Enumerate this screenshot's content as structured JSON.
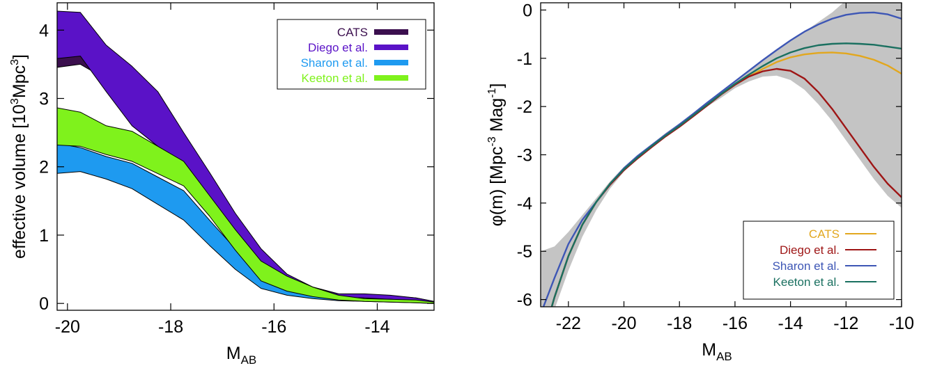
{
  "chart_data": [
    {
      "type": "area",
      "xlabel": "M",
      "xlabel_sub": "AB",
      "ylabel_pre": "effective volume [10",
      "ylabel_sup": "3",
      "ylabel_mid": "Mpc",
      "ylabel_sup2": "3",
      "ylabel_post": "]",
      "xlim": [
        -20.2,
        -12.9
      ],
      "ylim": [
        -0.1,
        4.4
      ],
      "xticks": [
        -20,
        -18,
        -16,
        -14
      ],
      "yticks": [
        0,
        1,
        2,
        3,
        4
      ],
      "legend_position": "top-right",
      "series": [
        {
          "name": "CATS",
          "color": "#3b0f4e",
          "x": [
            -20.25,
            -19.75,
            -19.25,
            -18.75,
            -18.25,
            -17.75,
            -17.25,
            -16.75,
            -16.25,
            -15.75,
            -15.25,
            -14.75,
            -14.25,
            -13.75,
            -13.25,
            -12.9
          ],
          "upper": [
            3.72,
            3.72,
            3.58,
            3.42,
            3.06,
            2.48,
            1.9,
            1.3,
            0.78,
            0.42,
            0.24,
            0.14,
            0.13,
            0.11,
            0.08,
            0.03
          ],
          "lower": [
            3.45,
            3.5,
            3.28,
            3.1,
            2.7,
            2.2,
            1.6,
            1.05,
            0.6,
            0.32,
            0.17,
            0.1,
            0.09,
            0.07,
            0.05,
            0.01
          ]
        },
        {
          "name": "Diego et al.",
          "color": "#5a12c7",
          "x": [
            -20.25,
            -19.75,
            -19.25,
            -18.75,
            -18.25,
            -17.75,
            -17.25,
            -16.75,
            -16.25,
            -15.75,
            -15.25,
            -14.75,
            -14.25,
            -13.75,
            -13.25,
            -12.9
          ],
          "upper": [
            4.28,
            4.26,
            3.78,
            3.47,
            3.1,
            2.5,
            1.92,
            1.32,
            0.8,
            0.43,
            0.24,
            0.14,
            0.14,
            0.12,
            0.08,
            0.03
          ],
          "lower": [
            3.58,
            3.62,
            3.1,
            2.6,
            2.3,
            2.0,
            1.5,
            1.0,
            0.58,
            0.3,
            0.16,
            0.09,
            0.08,
            0.06,
            0.04,
            0.01
          ]
        },
        {
          "name": "Sharon et al.",
          "color": "#1e9af0",
          "x": [
            -20.25,
            -19.75,
            -19.25,
            -18.75,
            -18.25,
            -17.75,
            -17.25,
            -16.75,
            -16.25,
            -15.75,
            -15.25,
            -14.75,
            -14.25,
            -13.75,
            -13.25,
            -12.9
          ],
          "upper": [
            2.35,
            2.28,
            2.15,
            2.05,
            1.85,
            1.65,
            1.22,
            0.8,
            0.4,
            0.24,
            0.15,
            0.09,
            0.07,
            0.06,
            0.04,
            0.01
          ],
          "lower": [
            1.9,
            1.93,
            1.82,
            1.68,
            1.45,
            1.22,
            0.85,
            0.5,
            0.22,
            0.12,
            0.07,
            0.04,
            0.03,
            0.02,
            0.01,
            0.0
          ]
        },
        {
          "name": "Keeton et al.",
          "color": "#7ff21c",
          "x": [
            -20.25,
            -19.75,
            -19.25,
            -18.75,
            -18.25,
            -17.75,
            -17.25,
            -16.75,
            -16.25,
            -15.75,
            -15.25,
            -14.75,
            -14.25,
            -13.75,
            -13.25,
            -12.9
          ],
          "upper": [
            2.87,
            2.8,
            2.6,
            2.52,
            2.3,
            2.08,
            1.58,
            1.08,
            0.62,
            0.4,
            0.24,
            0.12,
            0.07,
            0.06,
            0.05,
            0.02
          ],
          "lower": [
            2.32,
            2.3,
            2.18,
            2.08,
            1.9,
            1.72,
            1.28,
            0.78,
            0.33,
            0.18,
            0.1,
            0.05,
            0.03,
            0.02,
            0.01,
            0.0
          ]
        }
      ]
    },
    {
      "type": "line",
      "xlabel": "M",
      "xlabel_sub": "AB",
      "ylabel_pre": "φ(m) [Mpc",
      "ylabel_sup": "-3",
      "ylabel_mid": " Mag",
      "ylabel_sup2": "-1",
      "ylabel_post": "]",
      "xlim": [
        -23,
        -10
      ],
      "ylim": [
        -6.15,
        0.15
      ],
      "xticks": [
        -22,
        -20,
        -18,
        -16,
        -14,
        -12,
        -10
      ],
      "yticks": [
        0,
        -1,
        -2,
        -3,
        -4,
        -5,
        -6
      ],
      "legend_position": "bottom-right",
      "band_color": "#c4c4c4",
      "band": {
        "x": [
          -23,
          -22.5,
          -22,
          -21.5,
          -21,
          -20.5,
          -20,
          -19.5,
          -19,
          -18.5,
          -18,
          -17.5,
          -17,
          -16.5,
          -16,
          -15.5,
          -15,
          -14.5,
          -14,
          -13.5,
          -13,
          -12.5,
          -12,
          -11.5,
          -11,
          -10.5,
          -10
        ],
        "upper": [
          -5.0,
          -4.9,
          -4.6,
          -4.25,
          -3.9,
          -3.55,
          -3.25,
          -3.0,
          -2.78,
          -2.55,
          -2.35,
          -2.15,
          -1.95,
          -1.72,
          -1.5,
          -1.28,
          -1.05,
          -0.85,
          -0.65,
          -0.45,
          -0.25,
          -0.05,
          0.2,
          0.3,
          0.3,
          0.3,
          0.3
        ],
        "lower": [
          -6.3,
          -6.2,
          -5.4,
          -4.7,
          -4.15,
          -3.7,
          -3.35,
          -3.05,
          -2.82,
          -2.6,
          -2.42,
          -2.22,
          -2.0,
          -1.82,
          -1.62,
          -1.48,
          -1.38,
          -1.36,
          -1.45,
          -1.65,
          -1.95,
          -2.3,
          -2.7,
          -3.1,
          -3.5,
          -3.85,
          -4.1
        ]
      },
      "series": [
        {
          "name": "CATS",
          "color": "#e2a71e",
          "x": [
            -22.6,
            -22.5,
            -22,
            -21.5,
            -21,
            -20.5,
            -20,
            -19.5,
            -19,
            -18.5,
            -18,
            -17.5,
            -17,
            -16.5,
            -16,
            -15.5,
            -15,
            -14.5,
            -14,
            -13.5,
            -13,
            -12.5,
            -12,
            -11.5,
            -11,
            -10.5,
            -10
          ],
          "y": [
            -6.15,
            -5.95,
            -5.1,
            -4.45,
            -3.98,
            -3.6,
            -3.3,
            -3.05,
            -2.82,
            -2.6,
            -2.4,
            -2.18,
            -1.96,
            -1.75,
            -1.55,
            -1.38,
            -1.22,
            -1.08,
            -0.98,
            -0.92,
            -0.89,
            -0.88,
            -0.9,
            -0.95,
            -1.03,
            -1.15,
            -1.32
          ]
        },
        {
          "name": "Diego et al.",
          "color": "#9e1515",
          "x": [
            -22.6,
            -22.5,
            -22,
            -21.5,
            -21,
            -20.5,
            -20,
            -19.5,
            -19,
            -18.5,
            -18,
            -17.5,
            -17,
            -16.5,
            -16,
            -15.5,
            -15,
            -14.5,
            -14,
            -13.5,
            -13,
            -12.5,
            -12,
            -11.5,
            -11,
            -10.5,
            -10
          ],
          "y": [
            -6.15,
            -5.95,
            -5.1,
            -4.45,
            -3.98,
            -3.62,
            -3.32,
            -3.07,
            -2.84,
            -2.62,
            -2.42,
            -2.2,
            -1.98,
            -1.75,
            -1.55,
            -1.38,
            -1.27,
            -1.22,
            -1.26,
            -1.42,
            -1.7,
            -2.05,
            -2.45,
            -2.85,
            -3.25,
            -3.6,
            -3.88
          ]
        },
        {
          "name": "Sharon et al.",
          "color": "#3d56b5",
          "x": [
            -22.9,
            -22.5,
            -22,
            -21.5,
            -21,
            -20.5,
            -20,
            -19.5,
            -19,
            -18.5,
            -18,
            -17.5,
            -17,
            -16.5,
            -16,
            -15.5,
            -15,
            -14.5,
            -14,
            -13.5,
            -13,
            -12.5,
            -12,
            -11.5,
            -11,
            -10.5,
            -10
          ],
          "y": [
            -6.15,
            -5.55,
            -4.85,
            -4.35,
            -3.98,
            -3.6,
            -3.28,
            -3.02,
            -2.8,
            -2.58,
            -2.37,
            -2.15,
            -1.92,
            -1.7,
            -1.48,
            -1.26,
            -1.04,
            -0.83,
            -0.63,
            -0.45,
            -0.3,
            -0.18,
            -0.1,
            -0.06,
            -0.05,
            -0.09,
            -0.18
          ]
        },
        {
          "name": "Keeton et al.",
          "color": "#1a7060",
          "x": [
            -22.6,
            -22.5,
            -22,
            -21.5,
            -21,
            -20.5,
            -20,
            -19.5,
            -19,
            -18.5,
            -18,
            -17.5,
            -17,
            -16.5,
            -16,
            -15.5,
            -15,
            -14.5,
            -14,
            -13.5,
            -13,
            -12.5,
            -12,
            -11.5,
            -11,
            -10.5,
            -10
          ],
          "y": [
            -6.15,
            -5.95,
            -5.1,
            -4.45,
            -3.98,
            -3.6,
            -3.3,
            -3.05,
            -2.82,
            -2.6,
            -2.4,
            -2.18,
            -1.96,
            -1.74,
            -1.53,
            -1.34,
            -1.16,
            -1.0,
            -0.88,
            -0.79,
            -0.73,
            -0.7,
            -0.69,
            -0.7,
            -0.72,
            -0.76,
            -0.8
          ]
        }
      ]
    }
  ]
}
